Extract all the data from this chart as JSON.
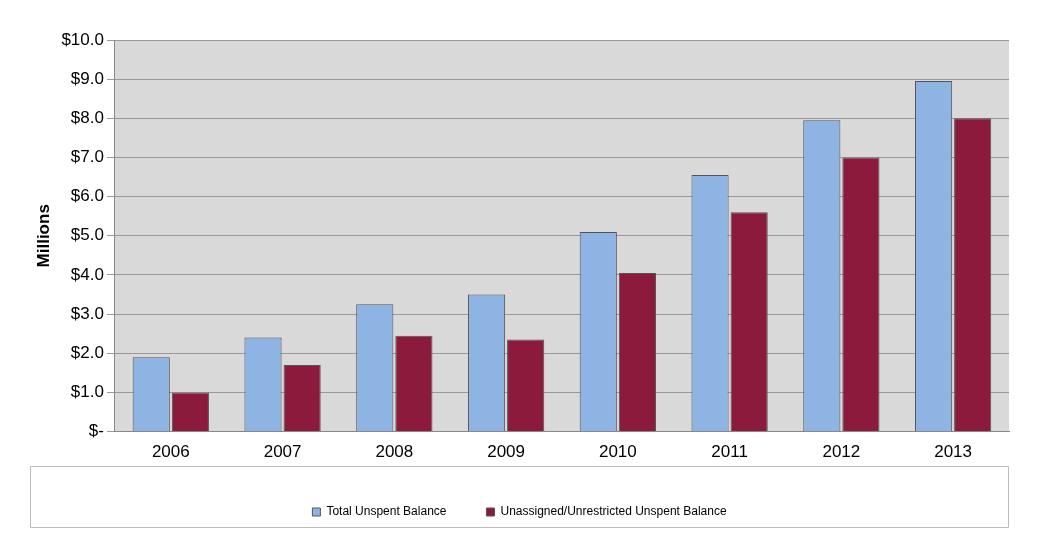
{
  "chart_data": {
    "type": "bar",
    "ylabel": "Millions",
    "categories": [
      "2006",
      "2007",
      "2008",
      "2009",
      "2010",
      "2011",
      "2012",
      "2013"
    ],
    "series": [
      {
        "name": "Total Unspent Balance",
        "color": "#8db4e2",
        "values": [
          1.9,
          2.4,
          3.25,
          3.5,
          5.1,
          6.55,
          7.95,
          8.95
        ]
      },
      {
        "name": "Unassigned/Unrestricted Unspent Balance",
        "color": "#8b1a3c",
        "values": [
          1.0,
          1.7,
          2.45,
          2.35,
          4.05,
          5.6,
          7.0,
          8.0
        ]
      }
    ],
    "ylim": [
      0,
      10
    ],
    "yticks": [
      {
        "value": 0,
        "label": "$-"
      },
      {
        "value": 1,
        "label": "$1.0"
      },
      {
        "value": 2,
        "label": "$2.0"
      },
      {
        "value": 3,
        "label": "$3.0"
      },
      {
        "value": 4,
        "label": "$4.0"
      },
      {
        "value": 5,
        "label": "$5.0"
      },
      {
        "value": 6,
        "label": "$6.0"
      },
      {
        "value": 7,
        "label": "$7.0"
      },
      {
        "value": 8,
        "label": "$8.0"
      },
      {
        "value": 9,
        "label": "$9.0"
      },
      {
        "value": 10,
        "label": "$10.0"
      }
    ],
    "grid": "y",
    "legend": "bottom"
  }
}
